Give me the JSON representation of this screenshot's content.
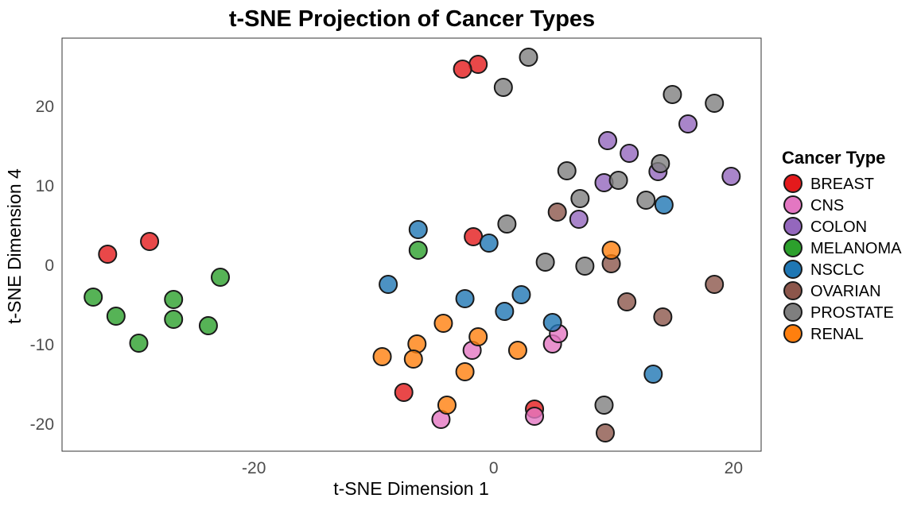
{
  "chart_data": {
    "type": "scatter",
    "title": "t-SNE Projection of Cancer Types",
    "xlabel": "t-SNE Dimension 1",
    "ylabel": "t-SNE Dimension 4",
    "xlim": [
      -36,
      22.3
    ],
    "ylim": [
      -23.4,
      28.6
    ],
    "xticks": [
      -20,
      0,
      20
    ],
    "yticks": [
      -20,
      -10,
      0,
      10,
      20
    ],
    "grid": false,
    "legend": {
      "title": "Cancer Type",
      "position": "right"
    },
    "series": [
      {
        "name": "BREAST",
        "color": "#e41a1c",
        "points": [
          [
            -1.3,
            25.3
          ],
          [
            -2.6,
            24.7
          ],
          [
            -32.2,
            1.4
          ],
          [
            -28.7,
            3.0
          ],
          [
            -1.7,
            3.6
          ],
          [
            -7.5,
            -16.0
          ],
          [
            3.4,
            -18.1
          ]
        ]
      },
      {
        "name": "CNS",
        "color": "#e377c2",
        "points": [
          [
            -1.8,
            -10.7
          ],
          [
            4.9,
            -9.9
          ],
          [
            5.4,
            -8.6
          ],
          [
            -4.4,
            -19.4
          ],
          [
            3.4,
            -19.0
          ]
        ]
      },
      {
        "name": "COLON",
        "color": "#9467bd",
        "points": [
          [
            9.5,
            15.7
          ],
          [
            11.3,
            14.1
          ],
          [
            16.2,
            17.8
          ],
          [
            19.8,
            11.2
          ],
          [
            9.2,
            10.4
          ],
          [
            13.7,
            11.8
          ],
          [
            7.1,
            5.8
          ]
        ]
      },
      {
        "name": "MELANOMA",
        "color": "#2ca02c",
        "points": [
          [
            -33.4,
            -4.0
          ],
          [
            -31.5,
            -6.4
          ],
          [
            -29.6,
            -9.8
          ],
          [
            -26.7,
            -4.3
          ],
          [
            -26.7,
            -6.8
          ],
          [
            -23.8,
            -7.6
          ],
          [
            -22.8,
            -1.5
          ],
          [
            -6.3,
            1.9
          ]
        ]
      },
      {
        "name": "NSCLC",
        "color": "#1f77b4",
        "points": [
          [
            -6.3,
            4.5
          ],
          [
            -0.4,
            2.8
          ],
          [
            -8.8,
            -2.4
          ],
          [
            -2.4,
            -4.2
          ],
          [
            2.3,
            -3.7
          ],
          [
            0.9,
            -5.8
          ],
          [
            4.9,
            -7.2
          ],
          [
            14.2,
            7.6
          ],
          [
            13.3,
            -13.7
          ]
        ]
      },
      {
        "name": "OVARIAN",
        "color": "#8c564b",
        "points": [
          [
            5.3,
            6.7
          ],
          [
            9.8,
            0.2
          ],
          [
            11.1,
            -4.6
          ],
          [
            18.4,
            -2.4
          ],
          [
            14.1,
            -6.5
          ],
          [
            9.3,
            -21.1
          ]
        ]
      },
      {
        "name": "PROSTATE",
        "color": "#7f7f7f",
        "points": [
          [
            2.9,
            26.2
          ],
          [
            0.8,
            22.4
          ],
          [
            14.9,
            21.5
          ],
          [
            18.4,
            20.4
          ],
          [
            6.1,
            11.9
          ],
          [
            10.4,
            10.7
          ],
          [
            13.9,
            12.8
          ],
          [
            7.2,
            8.4
          ],
          [
            12.7,
            8.2
          ],
          [
            1.1,
            5.2
          ],
          [
            4.3,
            0.4
          ],
          [
            7.6,
            -0.1
          ],
          [
            9.2,
            -17.6
          ]
        ]
      },
      {
        "name": "RENAL",
        "color": "#ff7f0e",
        "points": [
          [
            9.8,
            1.9
          ],
          [
            -4.2,
            -7.3
          ],
          [
            -1.3,
            -9.0
          ],
          [
            -6.4,
            -9.9
          ],
          [
            -9.3,
            -11.5
          ],
          [
            -6.7,
            -11.8
          ],
          [
            2.0,
            -10.7
          ],
          [
            -2.4,
            -13.4
          ],
          [
            -3.9,
            -17.6
          ]
        ]
      }
    ]
  }
}
